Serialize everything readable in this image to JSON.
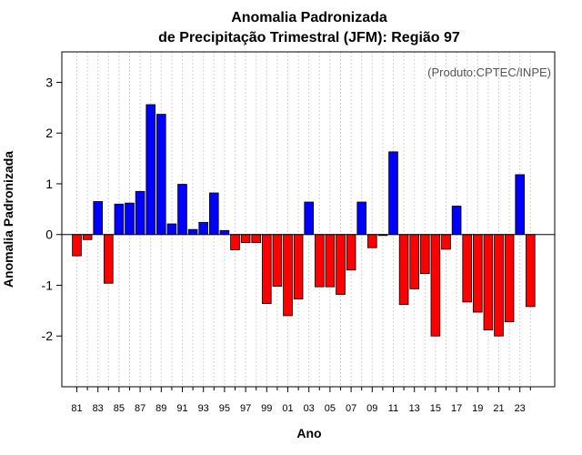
{
  "chart_data": {
    "type": "bar",
    "title_line1": "Anomalia Padronizada",
    "title_line2": "de Precipitação Trimestral (JFM): Região 97",
    "xlabel": "Ano",
    "ylabel": "Anomalia Padronizada",
    "annotation": "(Produto:CPTEC/INPE)",
    "ylim": [
      -3,
      3.6
    ],
    "yticks": [
      -2,
      -1,
      0,
      1,
      2,
      3
    ],
    "ytick_labels": [
      "-2",
      "-1",
      "0",
      "1",
      "2",
      "3"
    ],
    "grid": "vertical dashed",
    "positive_color": "#0000ff",
    "negative_color": "#ff0000",
    "categories": [
      "81",
      "82",
      "83",
      "84",
      "85",
      "86",
      "87",
      "88",
      "89",
      "90",
      "91",
      "92",
      "93",
      "94",
      "95",
      "96",
      "97",
      "98",
      "99",
      "00",
      "01",
      "02",
      "03",
      "04",
      "05",
      "06",
      "07",
      "08",
      "09",
      "10",
      "11",
      "12",
      "13",
      "14",
      "15",
      "16",
      "17",
      "18",
      "19",
      "20",
      "21",
      "22",
      "23",
      "24"
    ],
    "xtick_labels": [
      "81",
      "83",
      "85",
      "87",
      "89",
      "91",
      "93",
      "95",
      "97",
      "99",
      "01",
      "03",
      "05",
      "07",
      "09",
      "11",
      "13",
      "15",
      "17",
      "19",
      "21",
      "23"
    ],
    "values": [
      -0.42,
      -0.1,
      0.65,
      -0.96,
      0.6,
      0.62,
      0.85,
      2.56,
      2.37,
      0.21,
      0.99,
      0.1,
      0.24,
      0.82,
      0.08,
      -0.3,
      -0.16,
      -0.16,
      -1.36,
      -1.02,
      -1.6,
      -1.27,
      0.64,
      -1.03,
      -1.03,
      -1.18,
      -0.7,
      0.64,
      -0.26,
      -0.02,
      1.63,
      -1.38,
      -1.07,
      -0.77,
      -2.0,
      -0.29,
      0.56,
      -1.33,
      -1.53,
      -1.88,
      -2.0,
      -1.72,
      1.18,
      -1.42
    ]
  }
}
